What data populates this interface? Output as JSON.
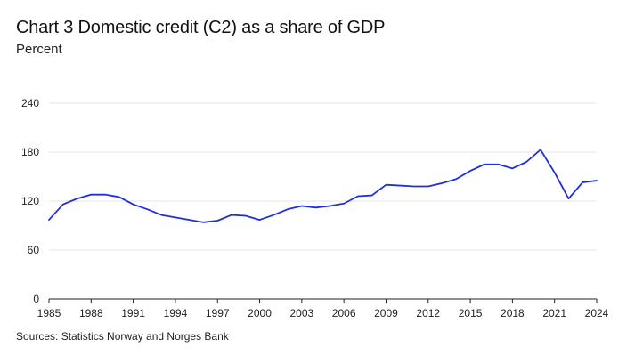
{
  "chart_data": {
    "type": "line",
    "title": "Chart 3 Domestic credit (C2) as a share of GDP",
    "subtitle": "Percent",
    "source": "Sources: Statistics Norway and Norges Bank",
    "xlabel": "",
    "ylabel": "",
    "ylim": [
      0,
      240
    ],
    "yticks": [
      0,
      60,
      120,
      180,
      240
    ],
    "xlim": [
      1985,
      2024
    ],
    "xticks": [
      1985,
      1988,
      1991,
      1994,
      1997,
      2000,
      2003,
      2006,
      2009,
      2012,
      2015,
      2018,
      2021,
      2024
    ],
    "grid": "horizontal",
    "legend": "none",
    "series": [
      {
        "color": "#1f2fe0",
        "x": [
          1985,
          1986,
          1987,
          1988,
          1989,
          1990,
          1991,
          1992,
          1993,
          1994,
          1995,
          1996,
          1997,
          1998,
          1999,
          2000,
          2001,
          2002,
          2003,
          2004,
          2005,
          2006,
          2007,
          2008,
          2009,
          2010,
          2011,
          2012,
          2013,
          2014,
          2015,
          2016,
          2017,
          2018,
          2019,
          2020,
          2021,
          2022,
          2023,
          2024
        ],
        "values": [
          97,
          116,
          123,
          128,
          128,
          125,
          116,
          110,
          103,
          100,
          97,
          94,
          96,
          103,
          102,
          97,
          103,
          110,
          114,
          112,
          114,
          117,
          126,
          127,
          140,
          139,
          138,
          138,
          142,
          147,
          157,
          165,
          165,
          160,
          168,
          183,
          155,
          123,
          143,
          145
        ]
      }
    ]
  }
}
